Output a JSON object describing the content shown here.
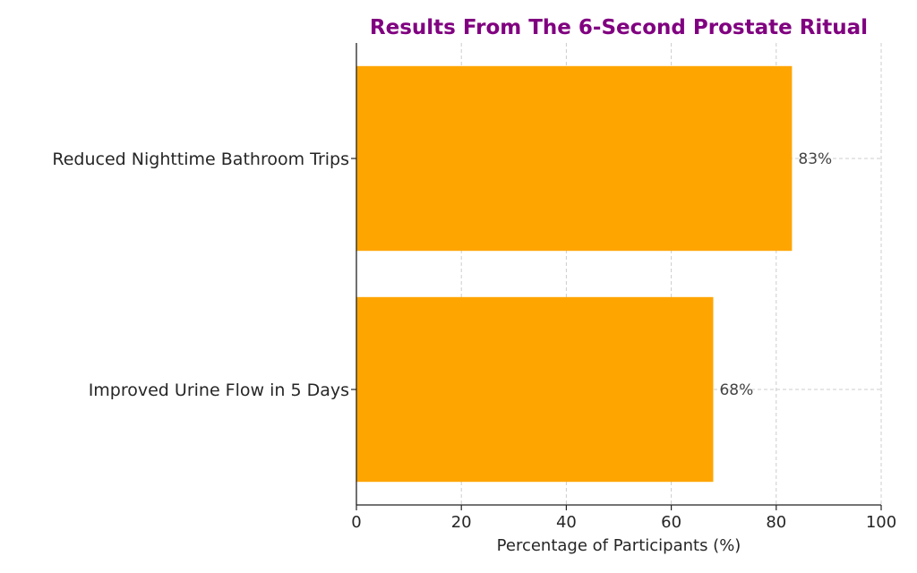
{
  "chart_data": {
    "type": "bar",
    "orientation": "horizontal",
    "title": "Results From The 6-Second Prostate Ritual",
    "xlabel": "Percentage of Participants (%)",
    "ylabel": "",
    "categories": [
      "Reduced Nighttime Bathroom Trips",
      "Improved Urine Flow in 5 Days"
    ],
    "values": [
      83,
      68
    ],
    "data_labels": [
      "83%",
      "68%"
    ],
    "xlim": [
      0,
      100
    ],
    "xticks": [
      0,
      20,
      40,
      60,
      80,
      100
    ],
    "xtick_labels": [
      "0",
      "20",
      "40",
      "60",
      "80",
      "100"
    ],
    "grid": true,
    "colors": {
      "bar": "#FFA500",
      "title": "#800080",
      "grid": "#cccccc",
      "text": "#262626"
    }
  }
}
